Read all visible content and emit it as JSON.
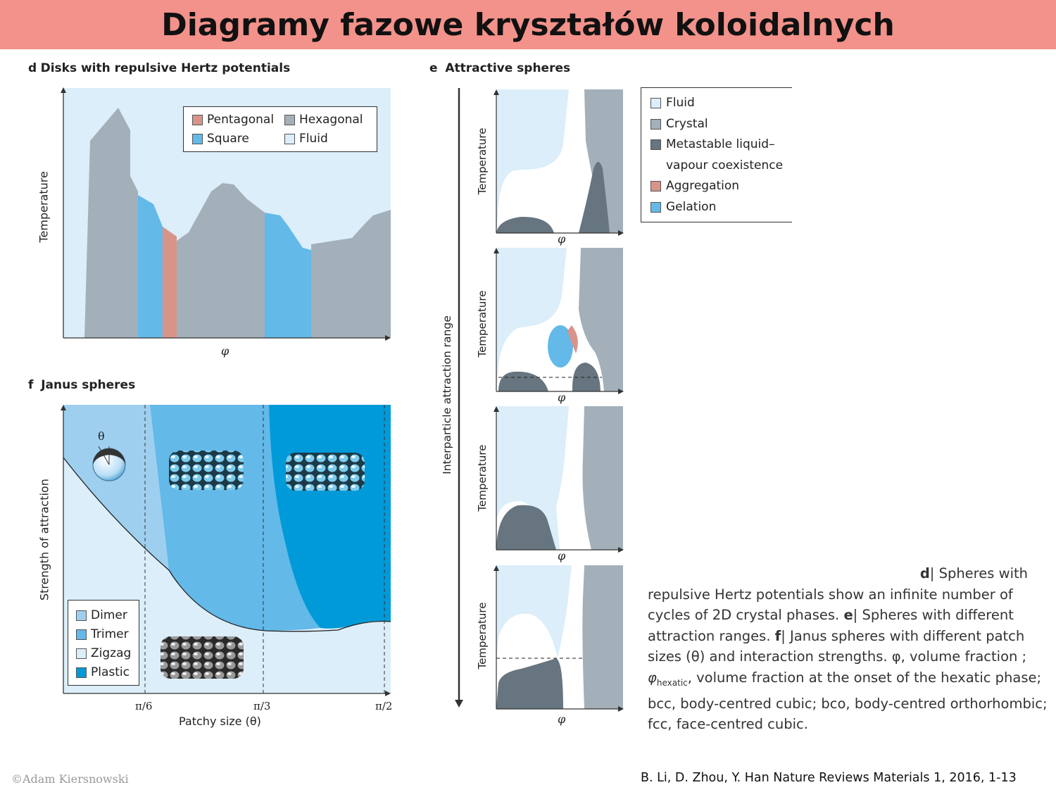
{
  "title": "Diagramy fazowe kryształów koloidalnych",
  "panel_d": {
    "letter": "d",
    "title": "Disks with repulsive Hertz potentials",
    "ylabel": "Temperature",
    "xlabel": "φ",
    "legend": [
      {
        "label": "Pentagonal",
        "color": "#d9948a"
      },
      {
        "label": "Hexagonal",
        "color": "#a3b0b9"
      },
      {
        "label": "Square",
        "color": "#63b9e8"
      },
      {
        "label": "Fluid",
        "color": "#dbeefa"
      }
    ]
  },
  "panel_e": {
    "letter": "e",
    "title": "Attractive spheres",
    "range_label": "Interparticle attraction range",
    "ylabel": "Temperature",
    "xlabel": "φ",
    "legend": [
      {
        "label": "Fluid",
        "color": "#dbeefa"
      },
      {
        "label": "Crystal",
        "color": "#a3b0b9"
      },
      {
        "label": "Metastable liquid–",
        "color": "#66757f"
      },
      {
        "label": "vapour coexistence",
        "color": ""
      },
      {
        "label": "Aggregation",
        "color": "#d9948a"
      },
      {
        "label": "Gelation",
        "color": "#63b9e8"
      }
    ]
  },
  "panel_f": {
    "letter": "f",
    "title": "Janus spheres",
    "ylabel": "Strength of attraction",
    "xlabel": "Patchy size (θ)",
    "theta_symbol": "θ",
    "ticks": [
      "π/6",
      "π/3",
      "π/2"
    ],
    "legend": [
      {
        "label": "Dimer",
        "color": "#9fcfef"
      },
      {
        "label": "Trimer",
        "color": "#63b9e8"
      },
      {
        "label": "Zigzag",
        "color": "#dbeefa"
      },
      {
        "label": "Plastic",
        "color": "#009ad9"
      }
    ]
  },
  "caption": {
    "d_letter": "d",
    "d_text": "| Spheres with repulsive Hertz potentials show an infinite number of cycles of 2D crystal phases.",
    "e_letter": "e",
    "e_text": "| Spheres with different attraction ranges.",
    "f_letter": "f",
    "f_text": "| Janus spheres with different patch sizes (θ) and interaction strengths.",
    "phi_def": "φ, volume fraction ;",
    "phi_hex": "φ",
    "phi_hex_sub": "hexatic",
    "phi_hex_def": ", volume fraction at the onset of the hexatic phase; bcc, body-centred cubic; bco, body-centred orthorhombic; fcc, face-centred cubic."
  },
  "footer": {
    "copyright": "©Adam Kiersnowski",
    "citation": "B. Li, D. Zhou, Y. Han Nature Reviews Materials 1, 2016, 1-13"
  }
}
